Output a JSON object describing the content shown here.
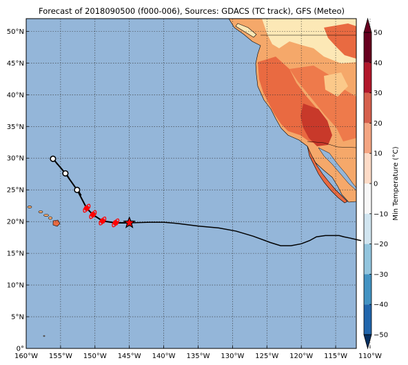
{
  "title": "Forecast of 2018090500 (f000-006), Sources: GDACS (TC track), GFS (Meteo)",
  "map": {
    "ocean_color": "#94b6d9",
    "land_colors": [
      "#fbe8b4",
      "#fbb66b",
      "#e96a41",
      "#c8392a"
    ],
    "lon_range": [
      -160,
      -112
    ],
    "lat_range": [
      0,
      52
    ],
    "x_ticks": [
      "160°W",
      "155°W",
      "150°W",
      "145°W",
      "140°W",
      "135°W",
      "130°W",
      "125°W",
      "120°W",
      "115°W",
      "110°W"
    ],
    "y_ticks": [
      "0°",
      "5°N",
      "10°N",
      "15°N",
      "20°N",
      "25°N",
      "30°N",
      "35°N",
      "40°N",
      "45°N",
      "50°N"
    ],
    "grid": true
  },
  "track": {
    "observed": [
      {
        "lon": -145.0,
        "lat": 19.8
      },
      {
        "lon": -147.0,
        "lat": 19.8
      },
      {
        "lon": -148.9,
        "lat": 20.1
      },
      {
        "lon": -150.3,
        "lat": 21.1
      },
      {
        "lon": -151.2,
        "lat": 22.1
      }
    ],
    "forecast": [
      {
        "lon": -152.6,
        "lat": 25.0
      },
      {
        "lon": -154.3,
        "lat": 27.6
      },
      {
        "lon": -156.1,
        "lat": 29.9
      }
    ],
    "path_line": [
      [
        -142,
        19.9
      ],
      [
        -140,
        19.9
      ],
      [
        -138,
        19.7
      ],
      [
        -135,
        19.3
      ],
      [
        -132,
        19.0
      ],
      [
        -129.5,
        18.5
      ],
      [
        -127,
        17.7
      ],
      [
        -124.5,
        16.7
      ],
      [
        -123,
        16.2
      ],
      [
        -121.5,
        16.2
      ],
      [
        -120,
        16.5
      ],
      [
        -118.8,
        17.0
      ],
      [
        -117.8,
        17.6
      ],
      [
        -116.5,
        17.8
      ],
      [
        -114.5,
        17.8
      ],
      [
        -113.8,
        17.6
      ],
      [
        -112.9,
        17.4
      ],
      [
        -111.3,
        17.0
      ]
    ],
    "current_marker": {
      "lon": -145.0,
      "lat": 19.8
    }
  },
  "colorbar": {
    "label": "Min Temperature (°C)",
    "ticks": [
      "50",
      "40",
      "30",
      "20",
      "10",
      "0",
      "−10",
      "−20",
      "−30",
      "−40",
      "−50"
    ],
    "colors": [
      "#67001f",
      "#b2182b",
      "#d6604d",
      "#f4a582",
      "#fddbc7",
      "#f7f7f7",
      "#d1e5f0",
      "#92c5de",
      "#4393c3",
      "#2166ac",
      "#053061"
    ]
  }
}
